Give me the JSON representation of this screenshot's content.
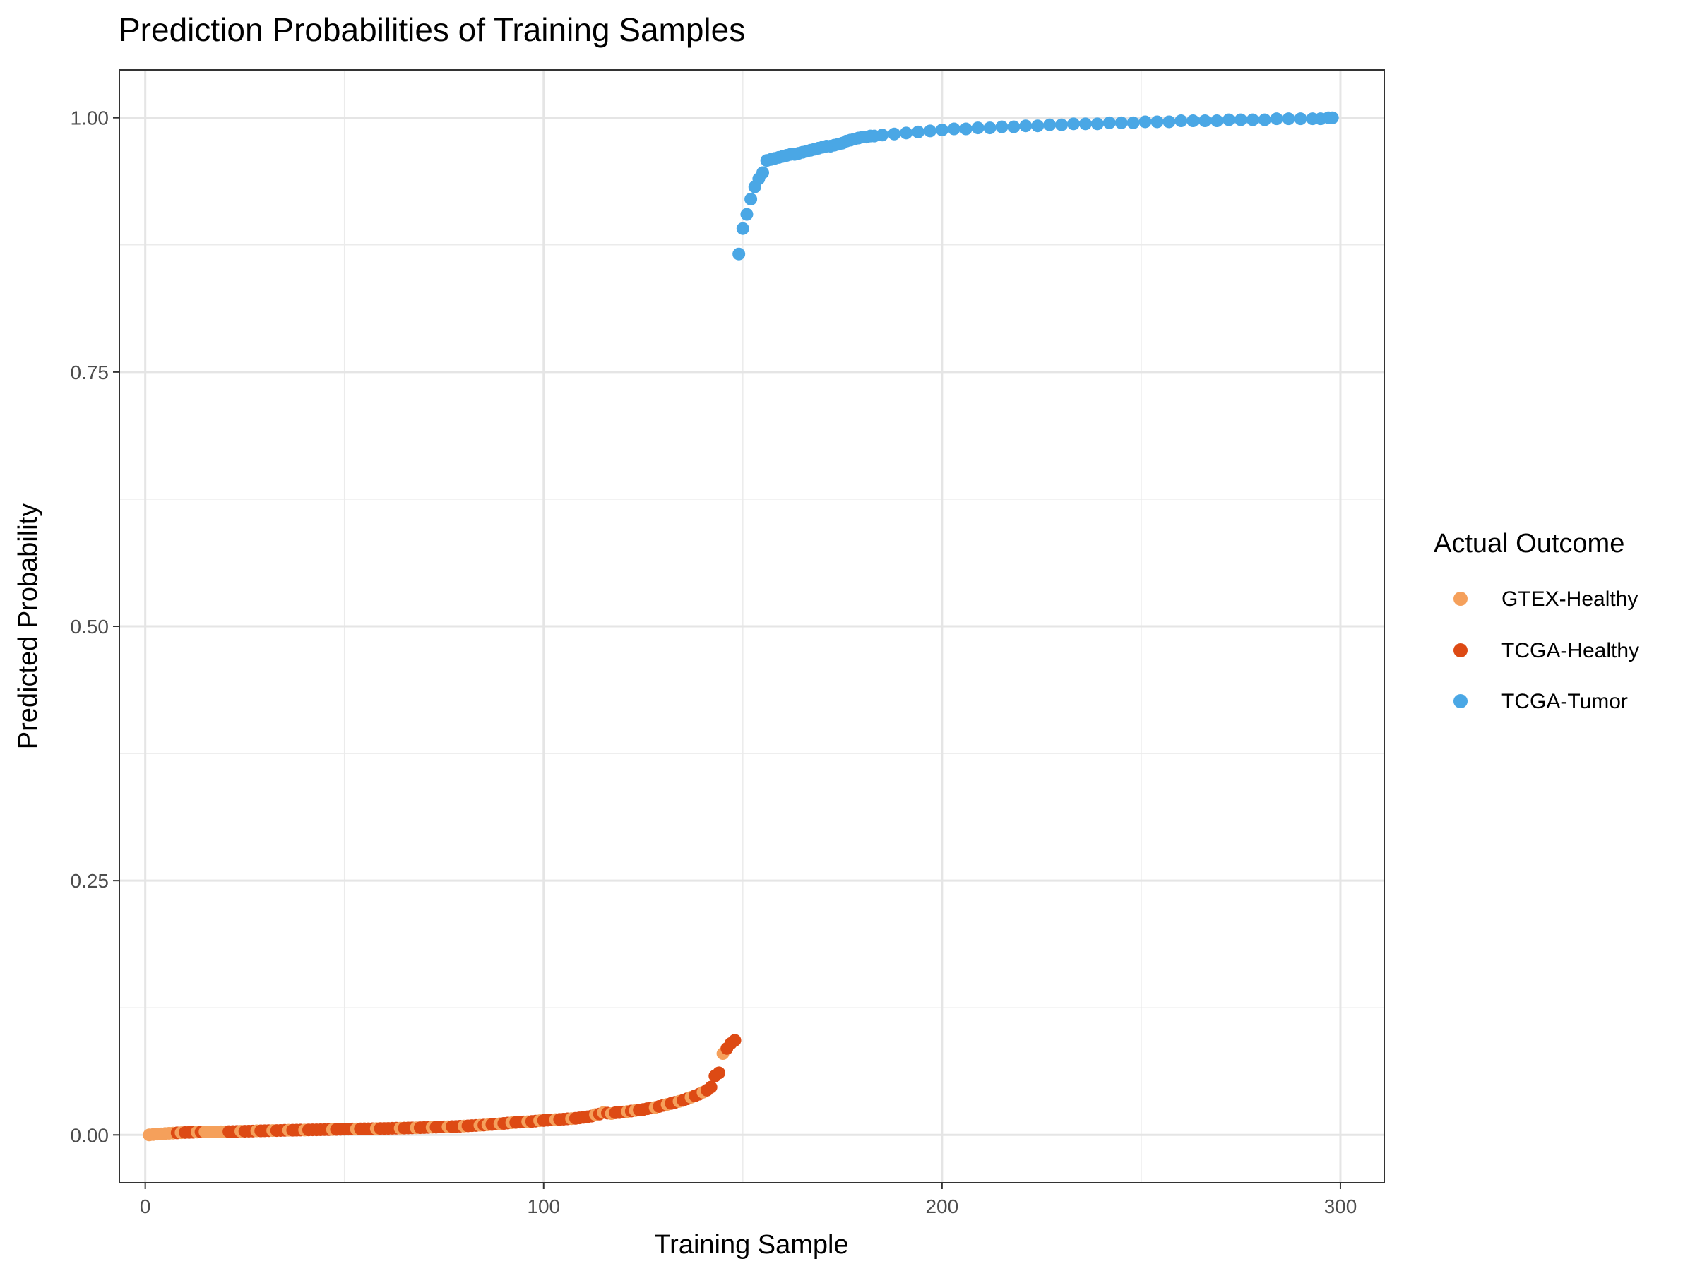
{
  "chart_data": {
    "type": "scatter",
    "title": "Prediction Probabilities of Training Samples",
    "xlabel": "Training Sample",
    "ylabel": "Predicted Probability",
    "xlim": [
      -6.5,
      311
    ],
    "ylim": [
      -0.047,
      1.047
    ],
    "x_ticks": [
      0,
      100,
      200,
      300
    ],
    "x_tick_labels": [
      "0",
      "100",
      "200",
      "300"
    ],
    "y_ticks": [
      0,
      0.25,
      0.5,
      0.75,
      1.0
    ],
    "y_tick_labels": [
      "0.00",
      "0.25",
      "0.50",
      "0.75",
      "1.00"
    ],
    "grid": true,
    "legend": {
      "title": "Actual Outcome",
      "position": "right",
      "entries": [
        {
          "label": "GTEX-Healthy",
          "color": "#F5A05B"
        },
        {
          "label": "TCGA-Healthy",
          "color": "#DD4A14"
        },
        {
          "label": "TCGA-Tumor",
          "color": "#4AA7E5"
        }
      ]
    },
    "series": [
      {
        "name": "GTEX-Healthy",
        "color": "#F5A05B",
        "points": [
          [
            1,
            0.0
          ],
          [
            2,
            0.0004
          ],
          [
            3,
            0.0008
          ],
          [
            4,
            0.001
          ],
          [
            5,
            0.0013
          ],
          [
            6,
            0.0016
          ],
          [
            7,
            0.0018
          ],
          [
            9,
            0.0022
          ],
          [
            13,
            0.0028
          ],
          [
            15,
            0.003
          ],
          [
            16,
            0.003
          ],
          [
            17,
            0.003
          ],
          [
            18,
            0.003
          ],
          [
            19,
            0.0031
          ],
          [
            20,
            0.0031
          ],
          [
            24,
            0.0036
          ],
          [
            28,
            0.004
          ],
          [
            32,
            0.0043
          ],
          [
            36,
            0.0046
          ],
          [
            40,
            0.0048
          ],
          [
            47,
            0.0053
          ],
          [
            53,
            0.0058
          ],
          [
            58,
            0.0062
          ],
          [
            64,
            0.0066
          ],
          [
            68,
            0.007
          ],
          [
            72,
            0.0075
          ],
          [
            76,
            0.008
          ],
          [
            80,
            0.0087
          ],
          [
            84,
            0.0095
          ],
          [
            86,
            0.01
          ],
          [
            89,
            0.011
          ],
          [
            92,
            0.012
          ],
          [
            96,
            0.013
          ],
          [
            99,
            0.014
          ],
          [
            103,
            0.015
          ],
          [
            107,
            0.016
          ],
          [
            113,
            0.02
          ],
          [
            115,
            0.022
          ],
          [
            117,
            0.021
          ],
          [
            121,
            0.023
          ],
          [
            123,
            0.024
          ],
          [
            128,
            0.027
          ],
          [
            131,
            0.03
          ],
          [
            134,
            0.033
          ],
          [
            137,
            0.037
          ],
          [
            140,
            0.042
          ],
          [
            145,
            0.08
          ]
        ]
      },
      {
        "name": "TCGA-Healthy",
        "color": "#DD4A14",
        "points": [
          [
            8,
            0.002
          ],
          [
            10,
            0.0024
          ],
          [
            11,
            0.0025
          ],
          [
            12,
            0.0026
          ],
          [
            14,
            0.0029
          ],
          [
            21,
            0.0032
          ],
          [
            22,
            0.0033
          ],
          [
            23,
            0.0034
          ],
          [
            25,
            0.0036
          ],
          [
            26,
            0.0037
          ],
          [
            27,
            0.0038
          ],
          [
            29,
            0.004
          ],
          [
            30,
            0.0041
          ],
          [
            31,
            0.0042
          ],
          [
            33,
            0.0043
          ],
          [
            34,
            0.0044
          ],
          [
            35,
            0.0045
          ],
          [
            37,
            0.0046
          ],
          [
            38,
            0.0047
          ],
          [
            39,
            0.0048
          ],
          [
            41,
            0.0049
          ],
          [
            42,
            0.005
          ],
          [
            43,
            0.005
          ],
          [
            44,
            0.0051
          ],
          [
            45,
            0.0052
          ],
          [
            46,
            0.0052
          ],
          [
            48,
            0.0054
          ],
          [
            49,
            0.0055
          ],
          [
            50,
            0.0056
          ],
          [
            51,
            0.0057
          ],
          [
            52,
            0.0058
          ],
          [
            54,
            0.0059
          ],
          [
            55,
            0.006
          ],
          [
            56,
            0.006
          ],
          [
            57,
            0.0061
          ],
          [
            59,
            0.0063
          ],
          [
            60,
            0.0063
          ],
          [
            61,
            0.0064
          ],
          [
            62,
            0.0065
          ],
          [
            63,
            0.0066
          ],
          [
            65,
            0.0067
          ],
          [
            66,
            0.0068
          ],
          [
            67,
            0.0069
          ],
          [
            69,
            0.0071
          ],
          [
            70,
            0.0072
          ],
          [
            71,
            0.0074
          ],
          [
            73,
            0.0076
          ],
          [
            74,
            0.0078
          ],
          [
            75,
            0.0079
          ],
          [
            77,
            0.0082
          ],
          [
            78,
            0.0083
          ],
          [
            79,
            0.0085
          ],
          [
            81,
            0.0089
          ],
          [
            82,
            0.0091
          ],
          [
            83,
            0.0093
          ],
          [
            85,
            0.0097
          ],
          [
            87,
            0.0103
          ],
          [
            88,
            0.0106
          ],
          [
            90,
            0.0113
          ],
          [
            91,
            0.0117
          ],
          [
            93,
            0.0123
          ],
          [
            94,
            0.0126
          ],
          [
            95,
            0.0128
          ],
          [
            97,
            0.0132
          ],
          [
            98,
            0.0136
          ],
          [
            100,
            0.0142
          ],
          [
            101,
            0.0145
          ],
          [
            102,
            0.0148
          ],
          [
            104,
            0.0152
          ],
          [
            105,
            0.0155
          ],
          [
            106,
            0.0158
          ],
          [
            108,
            0.0163
          ],
          [
            109,
            0.0168
          ],
          [
            110,
            0.0173
          ],
          [
            111,
            0.0178
          ],
          [
            112,
            0.0185
          ],
          [
            114,
            0.0205
          ],
          [
            116,
            0.0215
          ],
          [
            118,
            0.0218
          ],
          [
            119,
            0.022
          ],
          [
            120,
            0.0225
          ],
          [
            122,
            0.0235
          ],
          [
            124,
            0.0245
          ],
          [
            125,
            0.025
          ],
          [
            126,
            0.0258
          ],
          [
            127,
            0.0265
          ],
          [
            129,
            0.028
          ],
          [
            130,
            0.029
          ],
          [
            132,
            0.031
          ],
          [
            133,
            0.032
          ],
          [
            135,
            0.034
          ],
          [
            136,
            0.0355
          ],
          [
            138,
            0.0385
          ],
          [
            139,
            0.04
          ],
          [
            141,
            0.044
          ],
          [
            142,
            0.047
          ],
          [
            143,
            0.058
          ],
          [
            144,
            0.061
          ],
          [
            146,
            0.085
          ],
          [
            147,
            0.09
          ],
          [
            148,
            0.093
          ]
        ]
      },
      {
        "name": "TCGA-Tumor",
        "color": "#4AA7E5",
        "points": [
          [
            149,
            0.866
          ],
          [
            150,
            0.891
          ],
          [
            151,
            0.905
          ],
          [
            152,
            0.92
          ],
          [
            153,
            0.932
          ],
          [
            154,
            0.94
          ],
          [
            155,
            0.946
          ],
          [
            156,
            0.958
          ],
          [
            157,
            0.959
          ],
          [
            158,
            0.96
          ],
          [
            159,
            0.961
          ],
          [
            160,
            0.962
          ],
          [
            161,
            0.963
          ],
          [
            162,
            0.964
          ],
          [
            163,
            0.964
          ],
          [
            164,
            0.965
          ],
          [
            165,
            0.966
          ],
          [
            166,
            0.967
          ],
          [
            167,
            0.968
          ],
          [
            168,
            0.969
          ],
          [
            169,
            0.97
          ],
          [
            170,
            0.971
          ],
          [
            171,
            0.972
          ],
          [
            172,
            0.972
          ],
          [
            173,
            0.973
          ],
          [
            174,
            0.974
          ],
          [
            175,
            0.975
          ],
          [
            176,
            0.977
          ],
          [
            177,
            0.978
          ],
          [
            178,
            0.979
          ],
          [
            179,
            0.98
          ],
          [
            180,
            0.981
          ],
          [
            181,
            0.981
          ],
          [
            182,
            0.982
          ],
          [
            183,
            0.982
          ],
          [
            185,
            0.983
          ],
          [
            188,
            0.984
          ],
          [
            191,
            0.985
          ],
          [
            194,
            0.986
          ],
          [
            197,
            0.987
          ],
          [
            200,
            0.988
          ],
          [
            203,
            0.989
          ],
          [
            206,
            0.989
          ],
          [
            209,
            0.99
          ],
          [
            212,
            0.99
          ],
          [
            215,
            0.991
          ],
          [
            218,
            0.991
          ],
          [
            221,
            0.992
          ],
          [
            224,
            0.992
          ],
          [
            227,
            0.993
          ],
          [
            230,
            0.993
          ],
          [
            233,
            0.994
          ],
          [
            236,
            0.994
          ],
          [
            239,
            0.994
          ],
          [
            242,
            0.995
          ],
          [
            245,
            0.995
          ],
          [
            248,
            0.995
          ],
          [
            251,
            0.996
          ],
          [
            254,
            0.996
          ],
          [
            257,
            0.996
          ],
          [
            260,
            0.997
          ],
          [
            263,
            0.997
          ],
          [
            266,
            0.997
          ],
          [
            269,
            0.997
          ],
          [
            272,
            0.998
          ],
          [
            275,
            0.998
          ],
          [
            278,
            0.998
          ],
          [
            281,
            0.998
          ],
          [
            284,
            0.999
          ],
          [
            287,
            0.999
          ],
          [
            290,
            0.999
          ],
          [
            293,
            0.999
          ],
          [
            295,
            0.999
          ],
          [
            297,
            1.0
          ],
          [
            298,
            1.0
          ]
        ]
      }
    ]
  }
}
